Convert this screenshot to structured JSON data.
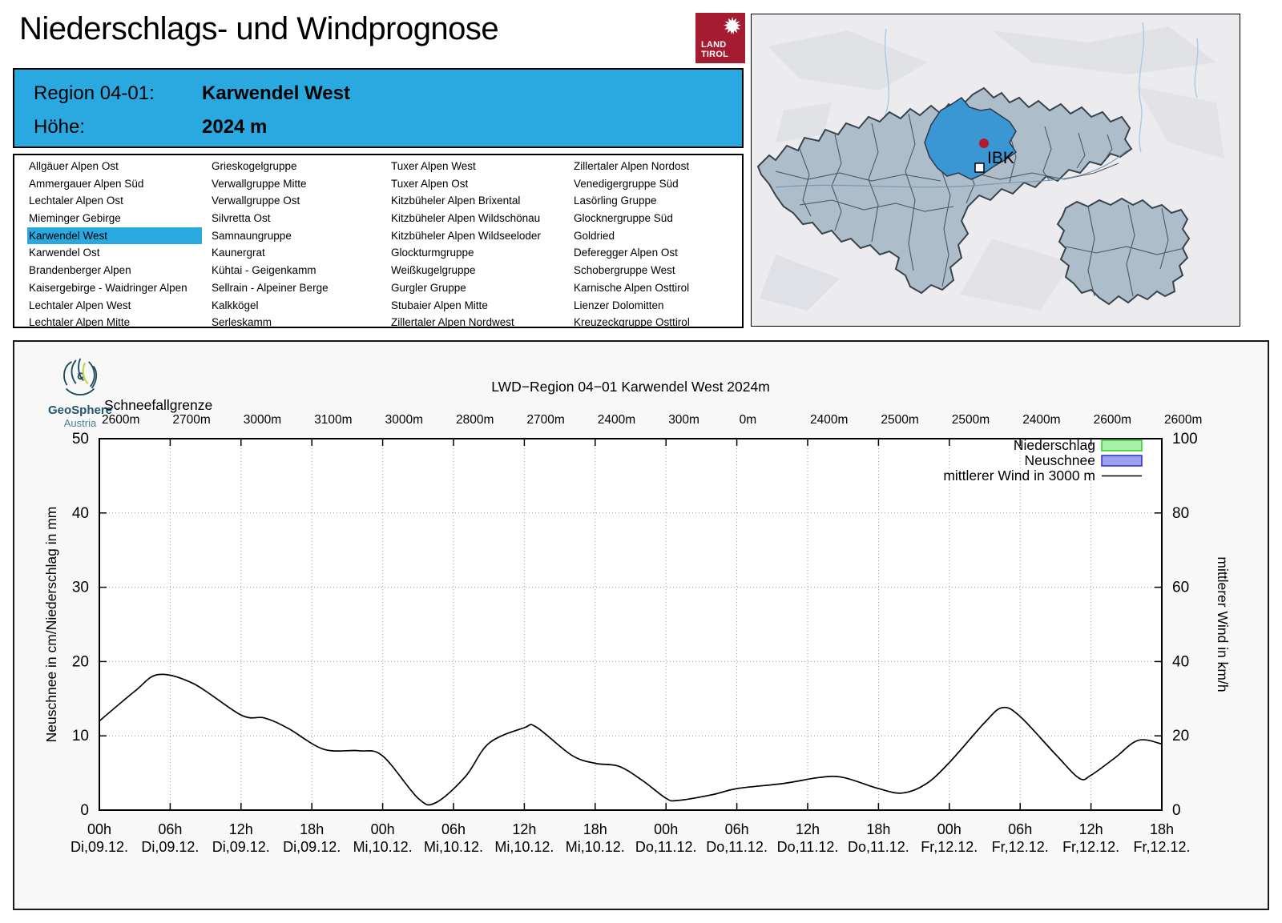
{
  "header": {
    "title": "Niederschlags- und Windprognose",
    "logo_land": "LAND",
    "logo_tirol": "TIROL"
  },
  "banner": {
    "region_label": "Region 04-01:",
    "region_value": "Karwendel West",
    "altitude_label": "Höhe:",
    "altitude_value": "2024 m",
    "background_color": "#29a9e0"
  },
  "region_list": {
    "selected": "Karwendel West",
    "highlight_color": "#29a9e0",
    "columns": [
      [
        "Allgäuer Alpen Ost",
        "Ammergauer Alpen Süd",
        "Lechtaler Alpen Ost",
        "Mieminger Gebirge",
        "Karwendel West",
        "Karwendel Ost",
        "Brandenberger Alpen",
        "Kaisergebirge - Waidringer Alpen",
        "Lechtaler Alpen West",
        "Lechtaler Alpen Mitte"
      ],
      [
        "Grieskogelgruppe",
        "Verwallgruppe Mitte",
        "Verwallgruppe Ost",
        "Silvretta Ost",
        "Samnaungruppe",
        "Kaunergrat",
        "Kühtai - Geigenkamm",
        "Sellrain - Alpeiner Berge",
        "Kalkkögel",
        "Serleskamm"
      ],
      [
        "Tuxer Alpen West",
        "Tuxer Alpen Ost",
        "Kitzbüheler Alpen Brixental",
        "Kitzbüheler Alpen Wildschönau",
        "Kitzbüheler Alpen Wildseeloder",
        "Glockturmgruppe",
        "Weißkugelgruppe",
        "Gurgler Gruppe",
        "Stubaier Alpen Mitte",
        "Zillertaler Alpen Nordwest"
      ],
      [
        "Zillertaler Alpen Nordost",
        "Venedigergruppe Süd",
        "Lasörling Gruppe",
        "Glocknergruppe Süd",
        "Goldried",
        "Deferegger Alpen Ost",
        "Schobergruppe West",
        "Karnische Alpen Osttirol",
        "Lienzer Dolomitten",
        "Kreuzeckgruppe Osttirol"
      ]
    ]
  },
  "map": {
    "marker_label": "IBK",
    "highlight_color": "#3a97d4",
    "region_fill": "#aebdca",
    "marker_dot_color": "#b01c2e"
  },
  "geosphere": {
    "name": "GeoSphere",
    "country": "Austria"
  },
  "chart_data": {
    "type": "line",
    "title": "LWD−Region 04−01 Karwendel West 2024m",
    "snowline_label": "Schneefallgrenze",
    "snowline_values_m": [
      "2600m",
      "2700m",
      "3000m",
      "3100m",
      "3000m",
      "2800m",
      "2700m",
      "2400m",
      "300m",
      "0m",
      "2400m",
      "2500m",
      "2500m",
      "2400m",
      "2600m",
      "2600m"
    ],
    "x_tick_hours": [
      "00h",
      "06h",
      "12h",
      "18h",
      "00h",
      "06h",
      "12h",
      "18h",
      "00h",
      "06h",
      "12h",
      "18h",
      "00h",
      "06h",
      "12h",
      "18h"
    ],
    "x_tick_dates": [
      "Di,09.12.",
      "Di,09.12.",
      "Di,09.12.",
      "Di,09.12.",
      "Mi,10.12.",
      "Mi,10.12.",
      "Mi,10.12.",
      "Mi,10.12.",
      "Do,11.12.",
      "Do,11.12.",
      "Do,11.12.",
      "Do,11.12.",
      "Fr,12.12.",
      "Fr,12.12.",
      "Fr,12.12.",
      "Fr,12.12."
    ],
    "ylabel_left": "Neuschnee in cm/Niederschlag in mm",
    "ylabel_right": "mittlerer Wind in km/h",
    "ylim_left": [
      0,
      50
    ],
    "ylim_right": [
      0,
      100
    ],
    "yticks_left": [
      0,
      10,
      20,
      30,
      40,
      50
    ],
    "yticks_right": [
      0,
      20,
      40,
      60,
      80,
      100
    ],
    "grid": true,
    "legend_position": "top-right-inside",
    "series": [
      {
        "name": "Niederschlag",
        "type": "bars",
        "unit": "mm",
        "axis": "left",
        "fill": "#a8f2a8",
        "border": "#2ec82e",
        "values": [
          0,
          0,
          0,
          0,
          0,
          0,
          0,
          0,
          0,
          0,
          0,
          0,
          0,
          0,
          0,
          0
        ]
      },
      {
        "name": "Neuschnee",
        "type": "bars",
        "unit": "cm",
        "axis": "left",
        "fill": "#9ba3f0",
        "border": "#2b2bd0",
        "values": [
          0,
          0,
          0,
          0,
          0,
          0,
          0,
          0,
          0,
          0,
          0,
          0,
          0,
          0,
          0,
          0
        ]
      },
      {
        "name": "mittlerer Wind in 3000 m",
        "type": "line",
        "unit": "km/h",
        "axis": "right",
        "color": "#000000",
        "x_unit": "hours since Di 09.12. 00h",
        "points": [
          [
            0,
            24
          ],
          [
            3,
            32
          ],
          [
            5,
            36.5
          ],
          [
            8,
            34
          ],
          [
            12,
            25.6
          ],
          [
            14,
            24.8
          ],
          [
            16,
            22
          ],
          [
            19,
            16.4
          ],
          [
            22,
            16
          ],
          [
            24,
            14.6
          ],
          [
            27,
            3.2
          ],
          [
            28.5,
            2
          ],
          [
            31,
            9
          ],
          [
            33,
            18
          ],
          [
            36,
            22.2
          ],
          [
            37,
            22.4
          ],
          [
            40,
            14.8
          ],
          [
            42,
            12.6
          ],
          [
            44,
            11.8
          ],
          [
            46,
            8
          ],
          [
            48,
            3.2
          ],
          [
            49,
            2.6
          ],
          [
            52,
            4.2
          ],
          [
            54,
            5.8
          ],
          [
            58,
            7.2
          ],
          [
            61,
            8.8
          ],
          [
            63,
            8.8
          ],
          [
            66,
            5.8
          ],
          [
            68,
            4.6
          ],
          [
            70,
            7
          ],
          [
            72,
            12.8
          ],
          [
            75,
            23.6
          ],
          [
            76.5,
            27.6
          ],
          [
            78,
            25.2
          ],
          [
            81,
            15
          ],
          [
            83,
            8.6
          ],
          [
            84,
            9.4
          ],
          [
            86,
            14
          ],
          [
            88,
            18.8
          ],
          [
            90,
            17.8
          ]
        ]
      }
    ]
  }
}
